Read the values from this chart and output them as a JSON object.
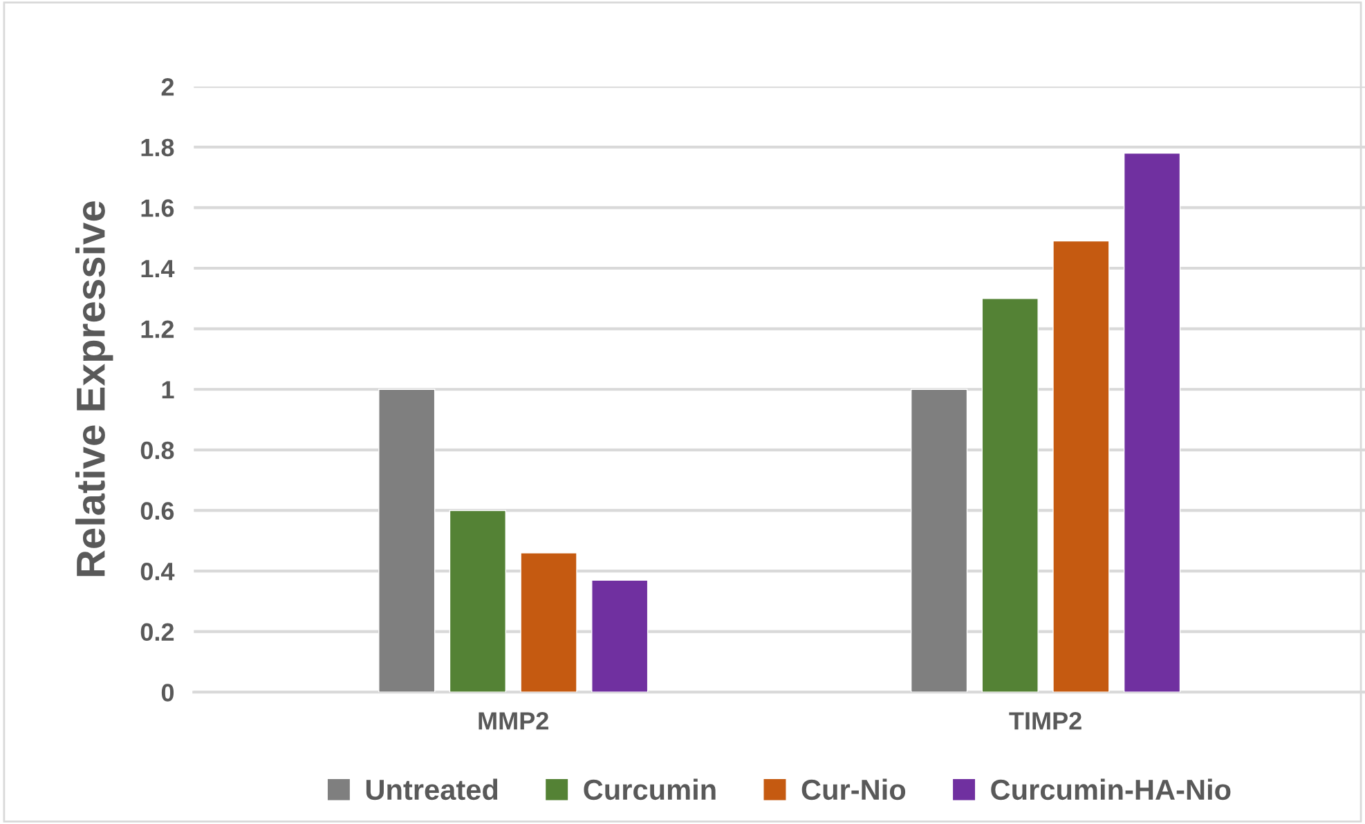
{
  "chart_data": {
    "type": "bar",
    "ylabel": "Relative Expressive",
    "categories": [
      "MMP2",
      "TIMP2"
    ],
    "series": [
      {
        "name": "Untreated",
        "color": "#7f7f7f",
        "values": [
          1,
          1
        ]
      },
      {
        "name": "Curcumin",
        "color": "#548235",
        "values": [
          0.6,
          1.3
        ]
      },
      {
        "name": "Cur-Nio",
        "color": "#c55a11",
        "values": [
          0.46,
          1.49
        ]
      },
      {
        "name": "Curcumin-HA-Nio",
        "color": "#7030a0",
        "values": [
          0.37,
          1.78
        ]
      }
    ],
    "ylim": [
      0,
      2
    ],
    "yticks": [
      0,
      0.2,
      0.4,
      0.6,
      0.8,
      1,
      1.2,
      1.4,
      1.6,
      1.8,
      2
    ],
    "grid": "y",
    "legend": "bottom"
  }
}
